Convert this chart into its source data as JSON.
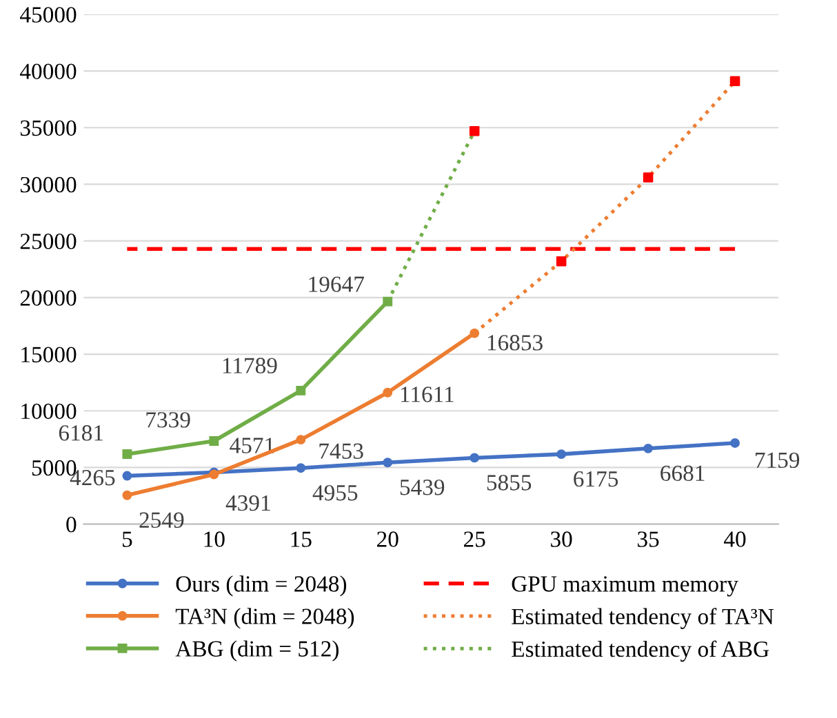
{
  "chart_data": {
    "type": "line",
    "categories": [
      "5",
      "10",
      "15",
      "20",
      "25",
      "30",
      "35",
      "40"
    ],
    "ylim": [
      0,
      45000
    ],
    "yticks": [
      0,
      5000,
      10000,
      15000,
      20000,
      25000,
      30000,
      35000,
      40000,
      45000
    ],
    "grid": "y",
    "legend": "bottom",
    "series": [
      {
        "name": "Ours (dim = 2048)",
        "color": "#4472c4",
        "marker": "circle",
        "values": [
          4265,
          4571,
          4955,
          5439,
          5855,
          6175,
          6681,
          7159
        ],
        "value_labels": [
          "4265",
          "4571",
          "4955",
          "5439",
          "5855",
          "6175",
          "6681",
          "7159"
        ]
      },
      {
        "name": "TA³N (dim = 2048)",
        "color": "#ed7d31",
        "marker": "circle",
        "values": [
          2549,
          4391,
          7453,
          11611,
          16853,
          null,
          null,
          null
        ],
        "value_labels": [
          "2549",
          "4391",
          "7453",
          "11611",
          "16853",
          null,
          null,
          null
        ]
      },
      {
        "name": "ABG (dim = 512)",
        "color": "#70ad47",
        "marker": "square",
        "values": [
          6181,
          7339,
          11789,
          19647,
          null,
          null,
          null,
          null
        ],
        "value_labels": [
          "6181",
          "7339",
          "11789",
          "19647",
          null,
          null,
          null,
          null
        ]
      },
      {
        "name": "GPU maximum memory",
        "color": "#ff0000",
        "line_style": "dashed",
        "values": [
          24300,
          24300,
          24300,
          24300,
          24300,
          24300,
          24300,
          24300
        ]
      },
      {
        "name": "Estimated tendency of TA³N",
        "color": "#ed7d31",
        "line_style": "dotted",
        "values": [
          null,
          null,
          null,
          null,
          16853,
          23200,
          30600,
          39100
        ]
      },
      {
        "name": "Estimated tendency of ABG",
        "color": "#70ad47",
        "line_style": "dotted",
        "values": [
          null,
          null,
          null,
          19647,
          34700,
          null,
          null,
          null
        ]
      },
      {
        "type": "scatter",
        "color": "#ff0000",
        "marker": "square",
        "values": [
          null,
          null,
          null,
          null,
          34700,
          23200,
          30600,
          39100
        ]
      }
    ]
  }
}
